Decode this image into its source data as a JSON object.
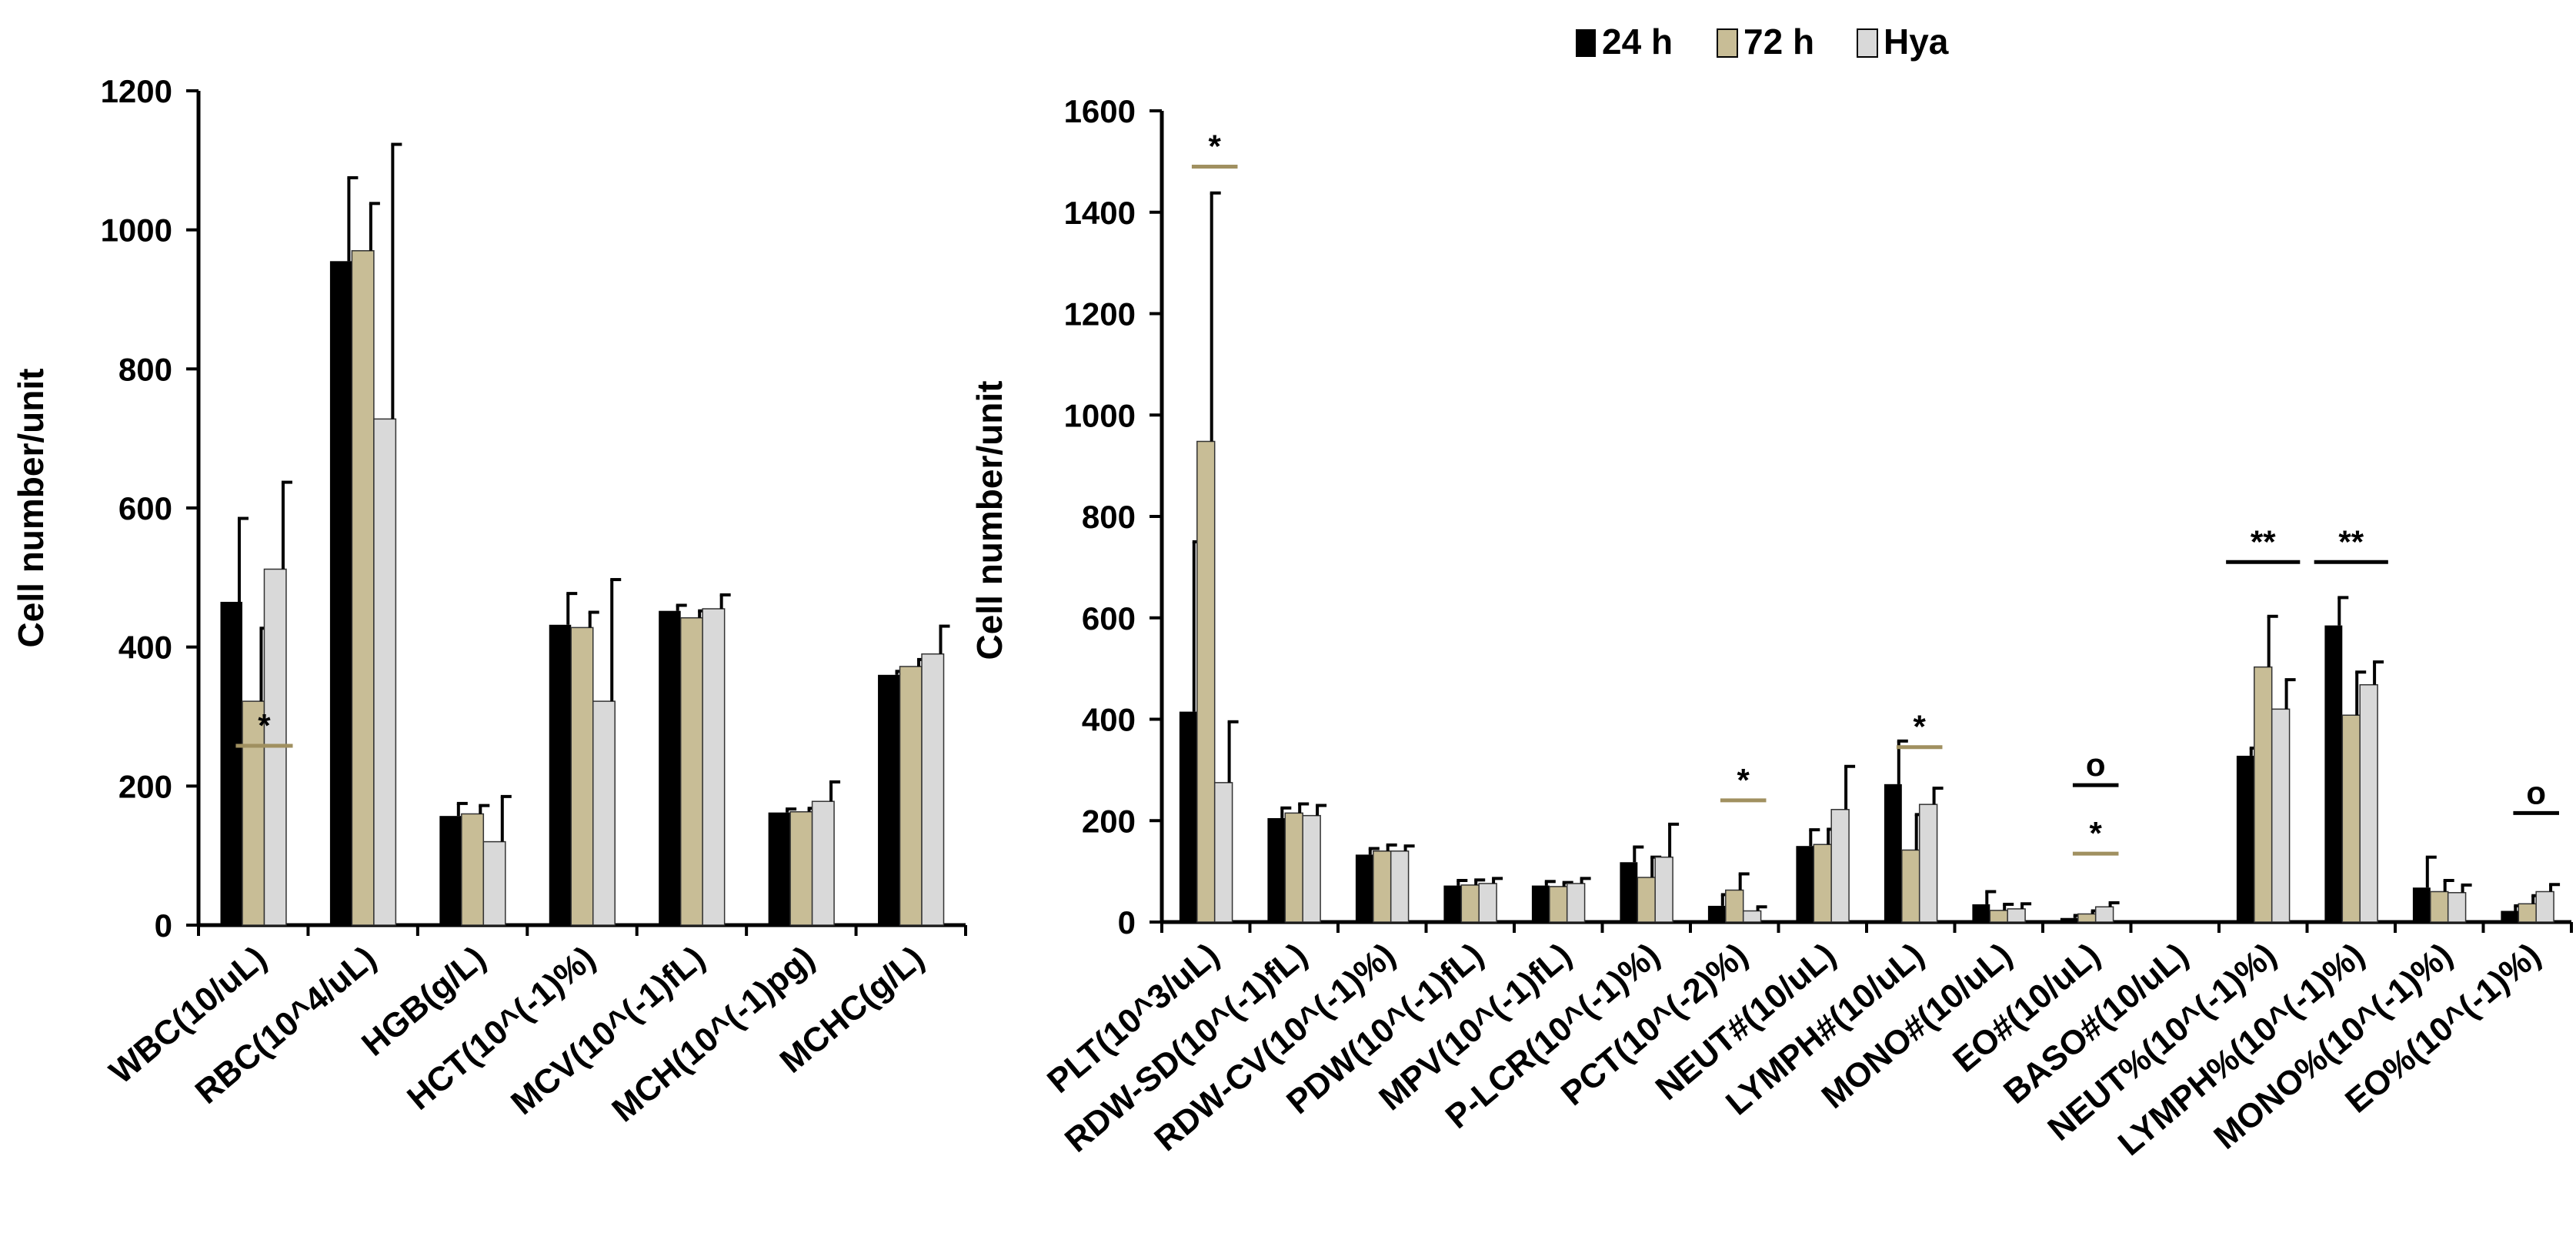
{
  "legend": {
    "items": [
      {
        "label": "24 h",
        "color": "#000000"
      },
      {
        "label": "72 h",
        "color": "#c8bd96"
      },
      {
        "label": "Hya",
        "color": "#d9d9d9"
      }
    ]
  },
  "chart_data": [
    {
      "type": "bar",
      "title": "",
      "ylabel": "Cell number/unit",
      "xlabel": "",
      "ylim": [
        0,
        1200
      ],
      "yticks": [
        "0",
        "200",
        "400",
        "600",
        "800",
        "1000",
        "1200"
      ],
      "categories": [
        "WBC(10/uL)",
        "RBC(10^4/uL)",
        "HGB(g/L)",
        "HCT(10^(-1)%)",
        "MCV(10^(-1)fL)",
        "MCH(10^(-1)pg)",
        "MCHC(g/L)"
      ],
      "series": [
        {
          "name": "24 h",
          "values": [
            465,
            955,
            157,
            432,
            452,
            162,
            360
          ],
          "errors": [
            120,
            120,
            18,
            45,
            8,
            5,
            5
          ]
        },
        {
          "name": "72 h",
          "values": [
            322,
            970,
            160,
            428,
            442,
            163,
            372
          ],
          "errors": [
            105,
            68,
            12,
            22,
            10,
            5,
            10
          ]
        },
        {
          "name": "Hya",
          "values": [
            512,
            728,
            120,
            322,
            455,
            178,
            390
          ],
          "errors": [
            125,
            395,
            65,
            175,
            20,
            28,
            40
          ]
        }
      ],
      "annotations": [
        {
          "category": "WBC(10/uL)",
          "text": "*",
          "line_color": "#a09060",
          "level": 258
        }
      ]
    },
    {
      "type": "bar",
      "title": "",
      "ylabel": "Cell number/unit",
      "xlabel": "",
      "ylim": [
        0,
        1600
      ],
      "yticks": [
        "0",
        "200",
        "400",
        "600",
        "800",
        "1000",
        "1200",
        "1400",
        "1600"
      ],
      "categories": [
        "PLT(10^3/uL)",
        "RDW-SD(10^(-1)fL)",
        "RDW-CV(10^(-1)%)",
        "PDW(10^(-1)fL)",
        "MPV(10^(-1)fL)",
        "P-LCR(10^(-1)%)",
        "PCT(10^(-2)%)",
        "NEUT#(10/uL)",
        "LYMPH#(10/uL)",
        "MONO#(10/uL)",
        "EO#(10/uL)",
        "BASO#(10/uL)",
        "NEUT%(10^(-1)%)",
        "LYMPH%(10^(-1)%)",
        "MONO%(10^(-1)%)",
        "EO%(10^(-1)%)"
      ],
      "series": [
        {
          "name": "24 h",
          "values": [
            415,
            205,
            133,
            72,
            72,
            118,
            32,
            150,
            272,
            35,
            8,
            0,
            328,
            585,
            68,
            22
          ],
          "errors": [
            335,
            20,
            12,
            10,
            8,
            30,
            22,
            32,
            85,
            25,
            5,
            0,
            15,
            55,
            60,
            10
          ]
        },
        {
          "name": "72 h",
          "values": [
            948,
            215,
            140,
            73,
            70,
            88,
            63,
            153,
            142,
            23,
            16,
            0,
            503,
            408,
            60,
            36
          ],
          "errors": [
            490,
            18,
            12,
            10,
            8,
            40,
            32,
            30,
            70,
            12,
            6,
            0,
            100,
            85,
            22,
            16
          ]
        },
        {
          "name": "Hya",
          "values": [
            275,
            210,
            140,
            76,
            76,
            128,
            22,
            222,
            232,
            26,
            30,
            0,
            420,
            468,
            58,
            60
          ],
          "errors": [
            120,
            20,
            10,
            10,
            10,
            65,
            8,
            85,
            32,
            10,
            8,
            0,
            58,
            45,
            15,
            14
          ]
        }
      ],
      "annotations": [
        {
          "category": "PLT(10^3/uL)",
          "text": "*",
          "line_color": "#a09060",
          "level": 1490
        },
        {
          "category": "PCT(10^(-2)%)",
          "text": "*",
          "line_color": "#a09060",
          "level": 240
        },
        {
          "category": "LYMPH#(10/uL)",
          "text": "*",
          "line_color": "#a09060",
          "level": 345
        },
        {
          "category": "EO#(10/uL)",
          "text": "o",
          "line_color": "#000000",
          "level": 270
        },
        {
          "category": "EO#(10/uL)",
          "text": "*",
          "line_color": "#a09060",
          "level": 135
        },
        {
          "category": "NEUT%(10^(-1)%)",
          "text": "**",
          "line_color": "#000000",
          "level": 710
        },
        {
          "category": "LYMPH%(10^(-1)%)",
          "text": "**",
          "line_color": "#000000",
          "level": 710
        },
        {
          "category": "EO%(10^(-1)%)",
          "text": "o",
          "line_color": "#000000",
          "level": 215
        }
      ]
    }
  ]
}
